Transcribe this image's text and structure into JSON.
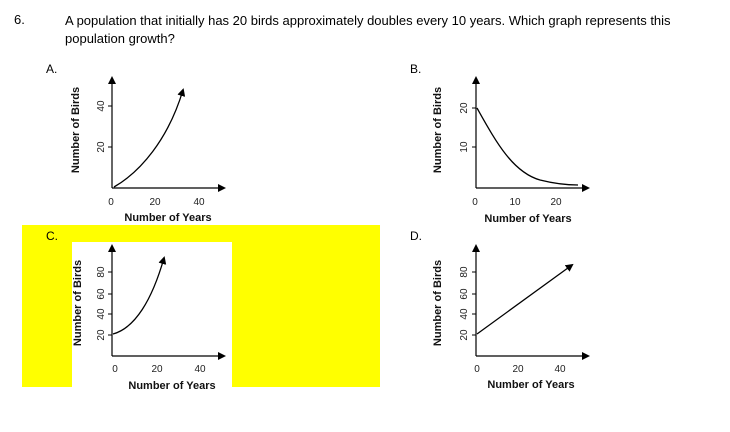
{
  "question": {
    "number": "6.",
    "text": "A population that initially has 20 birds approximately doubles every 10 years.  Which graph represents this population growth?"
  },
  "options": [
    {
      "label": "A.",
      "y_title": "Number of Birds",
      "x_title": "Number of Years",
      "y_ticks": [
        "40",
        "20"
      ],
      "x_ticks": [
        "0",
        "20",
        "40"
      ],
      "curve": "exponential growth from origin",
      "highlighted": false
    },
    {
      "label": "B.",
      "y_title": "Number of Birds",
      "x_title": "Number of Years",
      "y_ticks": [
        "20",
        "10"
      ],
      "x_ticks": [
        "0",
        "10",
        "20"
      ],
      "curve": "exponential decay",
      "highlighted": false
    },
    {
      "label": "C.",
      "y_title": "Number of Birds",
      "x_title": "Number of Years",
      "y_ticks": [
        "80",
        "60",
        "40",
        "20"
      ],
      "x_ticks": [
        "0",
        "20",
        "40"
      ],
      "curve": "exponential growth starting at 20",
      "highlighted": true
    },
    {
      "label": "D.",
      "y_title": "Number of Birds",
      "x_title": "Number of Years",
      "y_ticks": [
        "80",
        "60",
        "40",
        "20"
      ],
      "x_ticks": [
        "0",
        "20",
        "40"
      ],
      "curve": "linear growth starting at 20",
      "highlighted": false
    }
  ],
  "colors": {
    "highlight": "#ffff00",
    "ink": "#000000"
  }
}
